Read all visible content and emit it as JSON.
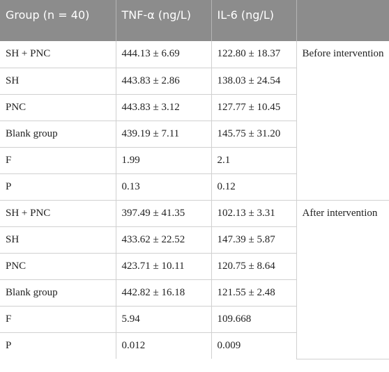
{
  "header": {
    "group": "Group (n = 40)",
    "tnf": "TNF-α (ng/L)",
    "il6": "IL-6 (ng/L)",
    "phase": ""
  },
  "sections": [
    {
      "phase": "Before intervention",
      "rows": [
        {
          "group": "SH + PNC",
          "tnf": "444.13 ± 6.69",
          "il6": "122.80 ± 18.37"
        },
        {
          "group": "SH",
          "tnf": "443.83 ± 2.86",
          "il6": "138.03 ± 24.54"
        },
        {
          "group": "PNC",
          "tnf": "443.83 ± 3.12",
          "il6": "127.77 ± 10.45"
        },
        {
          "group": "Blank group",
          "tnf": "439.19 ± 7.11",
          "il6": "145.75 ± 31.20"
        },
        {
          "group": "F",
          "tnf": "1.99",
          "il6": "2.1"
        },
        {
          "group": "P",
          "tnf": "0.13",
          "il6": "0.12"
        }
      ]
    },
    {
      "phase": "After intervention",
      "rows": [
        {
          "group": "SH + PNC",
          "tnf": "397.49 ± 41.35",
          "il6": "102.13 ± 3.31"
        },
        {
          "group": "SH",
          "tnf": "433.62 ± 22.52",
          "il6": "147.39 ± 5.87"
        },
        {
          "group": "PNC",
          "tnf": "423.71 ± 10.11",
          "il6": "120.75 ± 8.64"
        },
        {
          "group": "Blank group",
          "tnf": "442.82 ± 16.18",
          "il6": "121.55 ± 2.48"
        },
        {
          "group": "F",
          "tnf": "5.94",
          "il6": "109.668"
        },
        {
          "group": "P",
          "tnf": "0.012",
          "il6": "0.009"
        }
      ]
    }
  ]
}
